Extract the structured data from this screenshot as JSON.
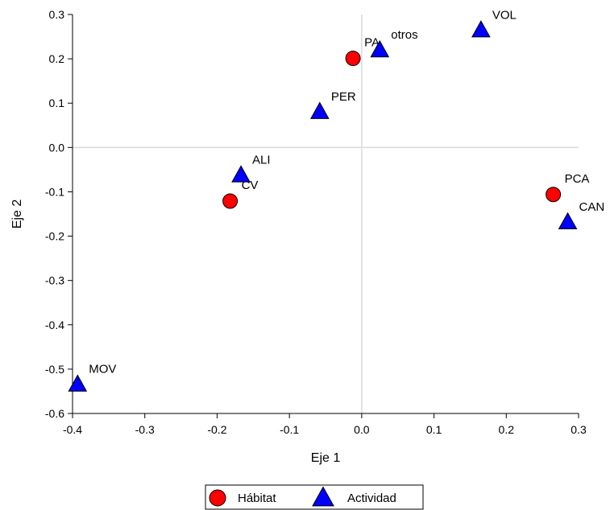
{
  "chart_data": {
    "type": "scatter",
    "title": "",
    "xlabel": "Eje 1",
    "ylabel": "Eje 2",
    "xlim": [
      -0.4,
      0.3
    ],
    "ylim": [
      -0.6,
      0.3
    ],
    "xticks": [
      -0.4,
      -0.3,
      -0.2,
      -0.1,
      0.0,
      0.1,
      0.2,
      0.3
    ],
    "xtick_labels": [
      "-0.4",
      "-0.3",
      "-0.2",
      "-0.1",
      "0.0",
      "0.1",
      "0.2",
      "0.3"
    ],
    "yticks": [
      0.3,
      0.2,
      0.1,
      0.0,
      -0.1,
      -0.2,
      -0.3,
      -0.4,
      -0.5,
      -0.6
    ],
    "ytick_labels": [
      "0.3",
      "0.2",
      "0.1",
      "0.0",
      "-0.1",
      "-0.2",
      "-0.3",
      "-0.4",
      "-0.5",
      "-0.6"
    ],
    "reference_lines": {
      "x": 0,
      "y": 0
    },
    "legend_position": "bottom-center",
    "series": [
      {
        "name": "Hábitat",
        "marker": "circle",
        "color": "#ff0000",
        "points": [
          {
            "label": "PA",
            "x": -0.012,
            "y": 0.201
          },
          {
            "label": "CV",
            "x": -0.182,
            "y": -0.121
          },
          {
            "label": "PCA",
            "x": 0.265,
            "y": -0.106
          }
        ]
      },
      {
        "name": "Actividad",
        "marker": "triangle",
        "color": "#0000ff",
        "points": [
          {
            "label": "otros",
            "x": 0.025,
            "y": 0.218
          },
          {
            "label": "VOL",
            "x": 0.165,
            "y": 0.263
          },
          {
            "label": "PER",
            "x": -0.058,
            "y": 0.079
          },
          {
            "label": "ALI",
            "x": -0.167,
            "y": -0.064
          },
          {
            "label": "CAN",
            "x": 0.285,
            "y": -0.17
          },
          {
            "label": "MOV",
            "x": -0.393,
            "y": -0.536
          }
        ]
      }
    ]
  }
}
